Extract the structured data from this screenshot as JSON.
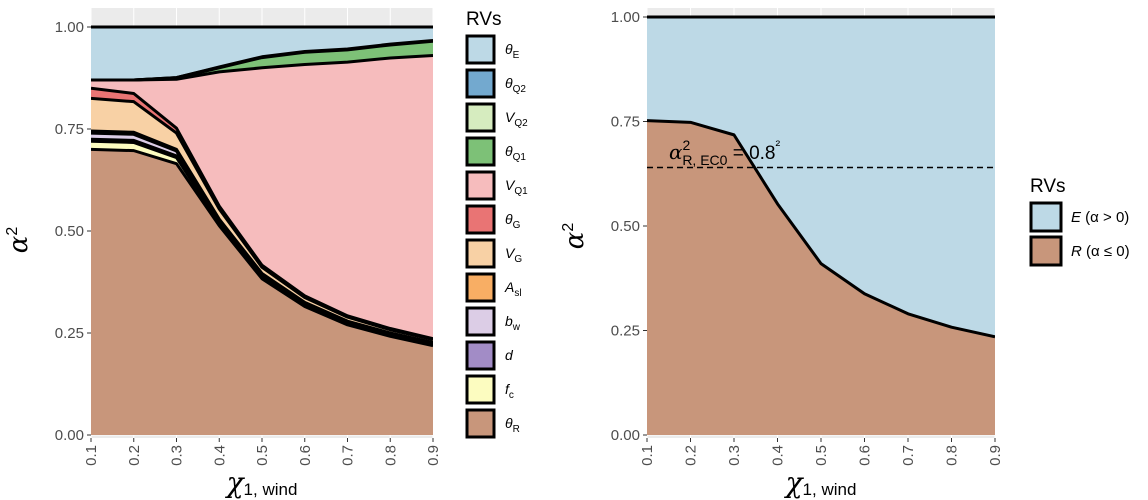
{
  "chart_data": [
    {
      "type": "area",
      "stacked": true,
      "xlabel": "χ1, wind",
      "ylabel": "α^2",
      "x": [
        0.1,
        0.2,
        0.3,
        0.4,
        0.5,
        0.6,
        0.7,
        0.8,
        0.9
      ],
      "xlim": [
        0.1,
        0.9
      ],
      "ylim": [
        0,
        1
      ],
      "x_ticks": [
        "0.1",
        "0.2",
        "0.3",
        "0.4",
        "0.5",
        "0.6",
        "0.7",
        "0.8",
        "0.9"
      ],
      "y_ticks": [
        "0.00",
        "0.25",
        "0.50",
        "0.75",
        "1.00"
      ],
      "grid": true,
      "legend_title": "RVs",
      "legend_position": "right",
      "series": [
        {
          "name": "θR",
          "label": {
            "base": "θ",
            "sub": "R"
          },
          "color": "#c8967b",
          "values": [
            0.7,
            0.697,
            0.665,
            0.513,
            0.383,
            0.315,
            0.27,
            0.242,
            0.219
          ]
        },
        {
          "name": "fc",
          "label": {
            "base": "f",
            "sub": "c"
          },
          "color": "#fcfcc0",
          "values": [
            0.02,
            0.02,
            0.015,
            0.006,
            0.004,
            0.003,
            0.003,
            0.002,
            0.002
          ]
        },
        {
          "name": "d",
          "label": {
            "base": "d",
            "sub": ""
          },
          "color": "#a28cc6",
          "values": [
            0.005,
            0.005,
            0.004,
            0.002,
            0.002,
            0.001,
            0.001,
            0.001,
            0.001
          ]
        },
        {
          "name": "bw",
          "label": {
            "base": "b",
            "sub": "w"
          },
          "color": "#dccde6",
          "values": [
            0.015,
            0.015,
            0.012,
            0.006,
            0.005,
            0.005,
            0.004,
            0.004,
            0.004
          ]
        },
        {
          "name": "Asl",
          "label": {
            "base": "A",
            "sub": "sl"
          },
          "color": "#f8ae64",
          "values": [
            0.005,
            0.005,
            0.004,
            0.002,
            0.002,
            0.001,
            0.001,
            0.001,
            0.001
          ]
        },
        {
          "name": "VG",
          "label": {
            "base": "V",
            "sub": "G"
          },
          "color": "#f8d1a5",
          "values": [
            0.08,
            0.075,
            0.04,
            0.025,
            0.015,
            0.012,
            0.01,
            0.008,
            0.007
          ]
        },
        {
          "name": "θG",
          "label": {
            "base": "θ",
            "sub": "G"
          },
          "color": "#e97474",
          "values": [
            0.025,
            0.02,
            0.012,
            0.007,
            0.005,
            0.004,
            0.003,
            0.003,
            0.002
          ]
        },
        {
          "name": "VQ1",
          "label": {
            "base": "V",
            "sub": "Q1"
          },
          "color": "#f6bcbd",
          "values": [
            0.02,
            0.033,
            0.12,
            0.329,
            0.484,
            0.567,
            0.622,
            0.663,
            0.694
          ]
        },
        {
          "name": "θQ1",
          "label": {
            "base": "θ",
            "sub": "Q1"
          },
          "color": "#7dc177",
          "values": [
            0.0,
            0.0,
            0.003,
            0.01,
            0.025,
            0.03,
            0.03,
            0.032,
            0.035
          ]
        },
        {
          "name": "VQ2",
          "label": {
            "base": "V",
            "sub": "Q2"
          },
          "color": "#d6ecbf",
          "values": [
            0.0,
            0.0,
            0.001,
            0.001,
            0.001,
            0.001,
            0.001,
            0.001,
            0.001
          ]
        },
        {
          "name": "θQ2",
          "label": {
            "base": "θ",
            "sub": "Q2"
          },
          "color": "#73a9cf",
          "values": [
            0.0,
            0.0,
            0.0,
            0.001,
            0.001,
            0.001,
            0.001,
            0.001,
            0.001
          ]
        },
        {
          "name": "θE",
          "label": {
            "base": "θ",
            "sub": "E"
          },
          "color": "#bdd9e6",
          "values": [
            0.13,
            0.13,
            0.124,
            0.098,
            0.073,
            0.06,
            0.054,
            0.042,
            0.033
          ]
        }
      ],
      "legend_order": [
        "θE",
        "θQ2",
        "VQ2",
        "θQ1",
        "VQ1",
        "θG",
        "VG",
        "Asl",
        "bw",
        "d",
        "fc",
        "θR"
      ]
    },
    {
      "type": "area",
      "stacked": true,
      "xlabel": "χ1, wind",
      "ylabel": "α^2",
      "x": [
        0.1,
        0.2,
        0.3,
        0.4,
        0.5,
        0.6,
        0.7,
        0.8,
        0.9
      ],
      "xlim": [
        0.1,
        0.9
      ],
      "ylim": [
        0,
        1
      ],
      "x_ticks": [
        "0.1",
        "0.2",
        "0.3",
        "0.4",
        "0.5",
        "0.6",
        "0.7",
        "0.8",
        "0.9"
      ],
      "y_ticks": [
        "0.00",
        "0.25",
        "0.50",
        "0.75",
        "1.00"
      ],
      "grid": true,
      "legend_title": "RVs",
      "legend_position": "right",
      "series": [
        {
          "name": "R (α ≤ 0)",
          "label": {
            "base": "R",
            "rest": " (α ≤ 0)"
          },
          "color": "#c8967b",
          "values": [
            0.752,
            0.748,
            0.718,
            0.553,
            0.41,
            0.338,
            0.29,
            0.258,
            0.235
          ]
        },
        {
          "name": "E (α > 0)",
          "label": {
            "base": "E",
            "rest": " (α > 0)"
          },
          "color": "#bdd9e6",
          "values": [
            0.248,
            0.252,
            0.282,
            0.447,
            0.59,
            0.662,
            0.71,
            0.742,
            0.765
          ]
        }
      ],
      "legend_order": [
        "E (α > 0)",
        "R (α ≤ 0)"
      ],
      "reference_line": {
        "y": 0.64,
        "style": "dashed",
        "annotation": "α²R, EC0 = 0.8²"
      }
    }
  ]
}
